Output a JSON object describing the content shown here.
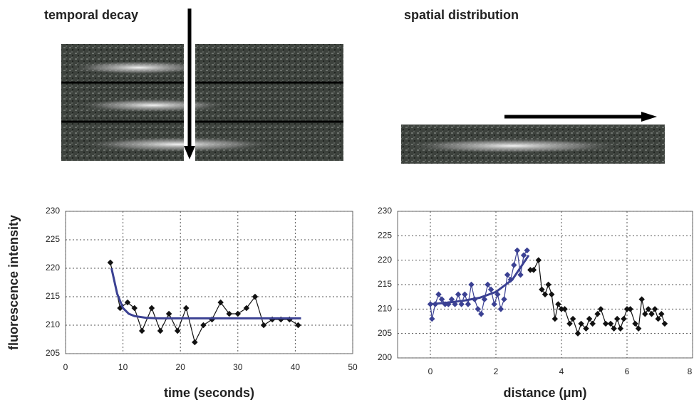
{
  "chart_data": [
    {
      "type": "scatter",
      "title": "temporal decay",
      "xlabel": "time (seconds)",
      "ylabel": "fluorescence intensity",
      "xlim": [
        0,
        50
      ],
      "ylim": [
        205,
        230
      ],
      "xticks": [
        0,
        10,
        20,
        30,
        40,
        50
      ],
      "yticks": [
        205,
        210,
        215,
        220,
        225,
        230
      ],
      "grid": true,
      "series": [
        {
          "color": "#111111",
          "mode": "markers+lines",
          "x": [
            7.8,
            9.5,
            10.8,
            12,
            13.3,
            15,
            16.5,
            18,
            19.5,
            21,
            22.5,
            24,
            25.5,
            27,
            28.5,
            30,
            31.5,
            33,
            34.5,
            36,
            37.5,
            39,
            40.5
          ],
          "values": [
            221,
            213,
            214,
            213,
            209,
            213,
            209,
            212,
            209,
            213,
            207,
            210,
            211,
            214,
            212,
            212,
            213,
            215,
            210,
            211,
            211,
            211,
            210
          ]
        },
        {
          "color": "#3b4193",
          "mode": "lines",
          "x": [
            8,
            9,
            10,
            11,
            12,
            14,
            16,
            20,
            25,
            30,
            35,
            41
          ],
          "values": [
            220,
            215.5,
            213,
            212,
            211.6,
            211.3,
            211.2,
            211.2,
            211.2,
            211.2,
            211.2,
            211.2
          ]
        }
      ]
    },
    {
      "type": "scatter",
      "title": "spatial distribution",
      "xlabel": "distance (μm)",
      "xlim": [
        -1,
        8
      ],
      "ylim": [
        200,
        230
      ],
      "xticks": [
        0,
        2,
        4,
        6,
        8
      ],
      "yticks": [
        200,
        205,
        210,
        215,
        220,
        225,
        230
      ],
      "grid": true,
      "series": [
        {
          "color": "#3b4193",
          "mode": "markers+lines",
          "x": [
            0,
            0.05,
            0.15,
            0.25,
            0.35,
            0.45,
            0.55,
            0.65,
            0.75,
            0.85,
            0.95,
            1.05,
            1.15,
            1.25,
            1.35,
            1.45,
            1.55,
            1.65,
            1.75,
            1.85,
            1.95,
            2.05,
            2.15,
            2.25,
            2.35,
            2.45,
            2.55,
            2.65,
            2.75,
            2.85,
            2.95
          ],
          "values": [
            211,
            208,
            211,
            213,
            212,
            211,
            211,
            212,
            211,
            213,
            211,
            213,
            211,
            215,
            212,
            210,
            209,
            212,
            215,
            214,
            211,
            213,
            210,
            212,
            217,
            216,
            219,
            222,
            217,
            221,
            222
          ]
        },
        {
          "color": "#111111",
          "mode": "markers+lines",
          "x": [
            3.05,
            3.15,
            3.3,
            3.4,
            3.5,
            3.6,
            3.7,
            3.8,
            3.9,
            4.0,
            4.1,
            4.25,
            4.35,
            4.5,
            4.6,
            4.75,
            4.85,
            4.95,
            5.1,
            5.2,
            5.35,
            5.5,
            5.6,
            5.7,
            5.8,
            5.9,
            6.0,
            6.1,
            6.25,
            6.35,
            6.45,
            6.55,
            6.65,
            6.75,
            6.85,
            6.95,
            7.05,
            7.15
          ],
          "values": [
            218,
            218,
            220,
            214,
            213,
            215,
            213,
            208,
            211,
            210,
            210,
            207,
            208,
            205,
            207,
            206,
            208,
            207,
            209,
            210,
            207,
            207,
            206,
            208,
            206,
            208,
            210,
            210,
            207,
            206,
            212,
            209,
            210,
            209,
            210,
            208,
            209,
            207
          ]
        },
        {
          "color": "#3b4193",
          "mode": "lines",
          "x": [
            0,
            0.5,
            1,
            1.5,
            2,
            2.5,
            3
          ],
          "values": [
            211,
            211.3,
            211.7,
            212.3,
            213.5,
            216,
            221
          ]
        }
      ]
    }
  ]
}
